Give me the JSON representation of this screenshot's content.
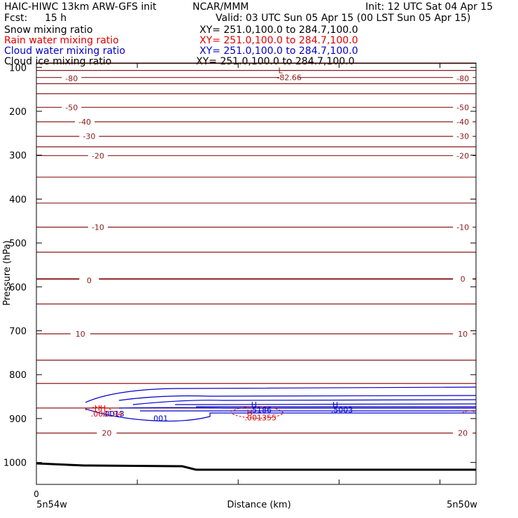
{
  "header": {
    "title_left": "HAIC-HIWC 13km ARW-GFS init",
    "center": "NCAR/MMM",
    "init": "Init: 12 UTC Sat 04 Apr 15",
    "fcst_label": "Fcst:",
    "fcst_value": "15 h",
    "valid": "Valid: 03 UTC Sun 05 Apr 15 (00 LST Sun 05 Apr 15)",
    "fields": [
      {
        "name": "Snow mixing ratio",
        "xy": "XY= 251.0,100.0 to 284.7,100.0",
        "color": "#000000"
      },
      {
        "name": "Rain water mixing ratio",
        "xy": "XY= 251.0,100.0 to 284.7,100.0",
        "color": "#e00000"
      },
      {
        "name": "Cloud water mixing ratio",
        "xy": "XY= 251.0,100.0 to 284.7,100.0",
        "color": "#0000cc"
      },
      {
        "name": "Cloud ice mixing ratio",
        "xy": "XY= 251.0,100.0 to 284.7,100.0",
        "color": "#000000"
      }
    ]
  },
  "chart_data": {
    "type": "line",
    "ylabel": "Pressure (hPa)",
    "xlabel": "Distance (km)",
    "x_start_label": "5n54w",
    "x_end_label": "5n50w",
    "x_zero_label": "0",
    "ylim": [
      1050,
      90
    ],
    "y_ticks": [
      100,
      200,
      300,
      400,
      500,
      600,
      700,
      800,
      900,
      1000
    ],
    "colors": {
      "temp": "#8b1a1a",
      "cloud": "#0000cc",
      "rain": "#e00000",
      "terrain": "#000000"
    },
    "temperature_contour_labels": [
      {
        "value": "-80",
        "p": 125,
        "x": 0.08
      },
      {
        "value": "-80",
        "p": 125,
        "x": 0.97
      },
      {
        "value": "-82.66",
        "p": 123,
        "x": 0.575
      },
      {
        "value": "-50",
        "p": 191,
        "x": 0.08
      },
      {
        "value": "-50",
        "p": 191,
        "x": 0.97
      },
      {
        "value": "-40",
        "p": 224,
        "x": 0.11
      },
      {
        "value": "-40",
        "p": 224,
        "x": 0.97
      },
      {
        "value": "-30",
        "p": 257,
        "x": 0.12
      },
      {
        "value": "-30",
        "p": 257,
        "x": 0.97
      },
      {
        "value": "-20",
        "p": 301,
        "x": 0.14
      },
      {
        "value": "-20",
        "p": 301,
        "x": 0.97
      },
      {
        "value": "-10",
        "p": 464,
        "x": 0.14
      },
      {
        "value": "-10",
        "p": 464,
        "x": 0.97
      },
      {
        "value": "0",
        "p": 585,
        "x": 0.12
      },
      {
        "value": "0",
        "p": 582,
        "x": 0.97
      },
      {
        "value": "10",
        "p": 707,
        "x": 0.1
      },
      {
        "value": "10",
        "p": 707,
        "x": 0.97
      },
      {
        "value": "20",
        "p": 933,
        "x": 0.16
      },
      {
        "value": "20",
        "p": 933,
        "x": 0.97
      }
    ],
    "extrema_labels": [
      {
        "text": "L",
        "p": 107,
        "x": 0.555,
        "color": "temp"
      },
      {
        "text": "HH",
        "p": 876,
        "x": 0.145,
        "color": "rain"
      },
      {
        "text": ".000194",
        "p": 889,
        "x": 0.16,
        "color": "rain"
      },
      {
        "text": ".0013",
        "p": 889,
        "x": 0.175,
        "color": "cloud"
      },
      {
        "text": ".001",
        "p": 899,
        "x": 0.28,
        "color": "cloud"
      },
      {
        "text": "H",
        "p": 868,
        "x": 0.495,
        "color": "cloud"
      },
      {
        "text": ".5186",
        "p": 880,
        "x": 0.51,
        "color": "cloud"
      },
      {
        "text": "H",
        "p": 886,
        "x": 0.485,
        "color": "rain"
      },
      {
        "text": ".001355",
        "p": 898,
        "x": 0.51,
        "color": "rain"
      },
      {
        "text": "H",
        "p": 868,
        "x": 0.68,
        "color": "cloud"
      },
      {
        "text": ".5003",
        "p": 880,
        "x": 0.695,
        "color": "cloud"
      }
    ],
    "temperature_isotherms_hpa": [
      91,
      107,
      123,
      137,
      160,
      191,
      224,
      257,
      281,
      301,
      350,
      409,
      464,
      521,
      582,
      639,
      707,
      767,
      820,
      876,
      933
    ]
  }
}
